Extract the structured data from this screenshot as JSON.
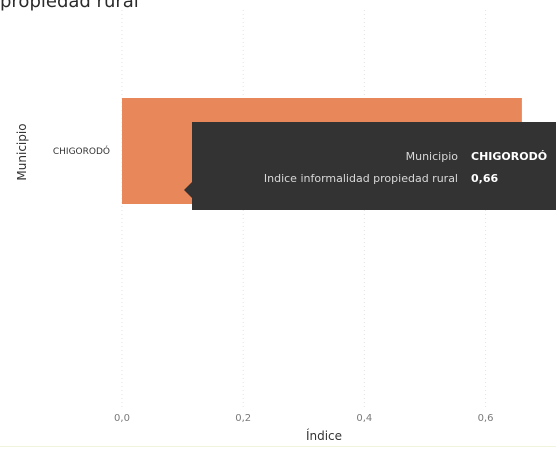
{
  "page": {
    "top_text": "propiedad rural"
  },
  "chart_data": {
    "type": "bar",
    "orientation": "horizontal",
    "categories": [
      "CHIGORODÓ"
    ],
    "values": [
      0.66
    ],
    "xlabel": "Índice",
    "ylabel": "Municipio",
    "xlim": [
      0,
      0.68
    ],
    "xticks": [
      "0,0",
      "0,2",
      "0,4",
      "0,6"
    ],
    "xtick_values": [
      0,
      0.2,
      0.4,
      0.6
    ],
    "grid": true,
    "bar_color": "#e8875a"
  },
  "tooltip": {
    "rows": [
      {
        "label": "Municipio",
        "value": "CHIGORODÓ"
      },
      {
        "label": "Indice informalidad propiedad rural",
        "value": "0,66"
      }
    ]
  },
  "colors": {
    "bar": "#e8875a",
    "tooltip_bg": "#333333",
    "gridline": "#e3e3e3"
  }
}
